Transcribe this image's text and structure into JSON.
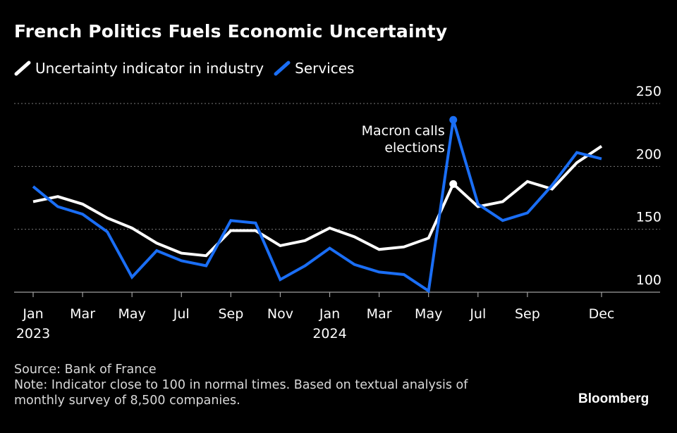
{
  "title": "French Politics Fuels Economic Uncertainty",
  "colors": {
    "background": "#000000",
    "industry": "#ffffff",
    "services": "#1a6ef5",
    "grid": "#7a7a7a",
    "text": "#ffffff",
    "footer_text": "#d9d9d9"
  },
  "chart_data": {
    "type": "line",
    "title": "French Politics Fuels Economic Uncertainty",
    "xlabel": "",
    "ylabel": "",
    "ylim": [
      100,
      250
    ],
    "yticks": [
      100,
      150,
      200,
      250
    ],
    "grid": true,
    "legend_position": "top-left",
    "x": [
      "Jan 2023",
      "Feb 2023",
      "Mar 2023",
      "Apr 2023",
      "May 2023",
      "Jun 2023",
      "Jul 2023",
      "Aug 2023",
      "Sep 2023",
      "Oct 2023",
      "Nov 2023",
      "Dec 2023",
      "Jan 2024",
      "Feb 2024",
      "Mar 2024",
      "Apr 2024",
      "May 2024",
      "Jun 2024",
      "Jul 2024",
      "Aug 2024",
      "Sep 2024",
      "Oct 2024",
      "Nov 2024",
      "Dec 2024"
    ],
    "x_tick_labels": [
      {
        "index": 0,
        "label": "Jan",
        "sublabel": "2023"
      },
      {
        "index": 2,
        "label": "Mar"
      },
      {
        "index": 4,
        "label": "May"
      },
      {
        "index": 6,
        "label": "Jul"
      },
      {
        "index": 8,
        "label": "Sep"
      },
      {
        "index": 10,
        "label": "Nov"
      },
      {
        "index": 12,
        "label": "Jan",
        "sublabel": "2024"
      },
      {
        "index": 14,
        "label": "Mar"
      },
      {
        "index": 16,
        "label": "May"
      },
      {
        "index": 18,
        "label": "Jul"
      },
      {
        "index": 20,
        "label": "Sep"
      },
      {
        "index": 23,
        "label": "Dec"
      }
    ],
    "series": [
      {
        "name": "Uncertainty indicator in industry",
        "color": "#ffffff",
        "values": [
          172,
          176,
          170,
          159,
          151,
          139,
          131,
          129,
          149,
          149,
          137,
          141,
          151,
          144,
          134,
          136,
          143,
          186,
          168,
          172,
          188,
          182,
          203,
          216
        ]
      },
      {
        "name": "Services",
        "color": "#1a6ef5",
        "values": [
          184,
          168,
          162,
          148,
          112,
          133,
          125,
          121,
          157,
          155,
          110,
          121,
          135,
          122,
          116,
          114,
          101,
          237,
          170,
          157,
          163,
          185,
          211,
          206
        ]
      }
    ],
    "annotations": [
      {
        "text_lines": [
          "Macron calls",
          "elections"
        ],
        "index": 17
      }
    ]
  },
  "footer": {
    "source": "Source: Bank of France",
    "note_line1": "Note: Indicator close to 100 in normal times. Based on textual analysis of",
    "note_line2": "monthly survey of 8,500 companies."
  },
  "brand": "Bloomberg"
}
